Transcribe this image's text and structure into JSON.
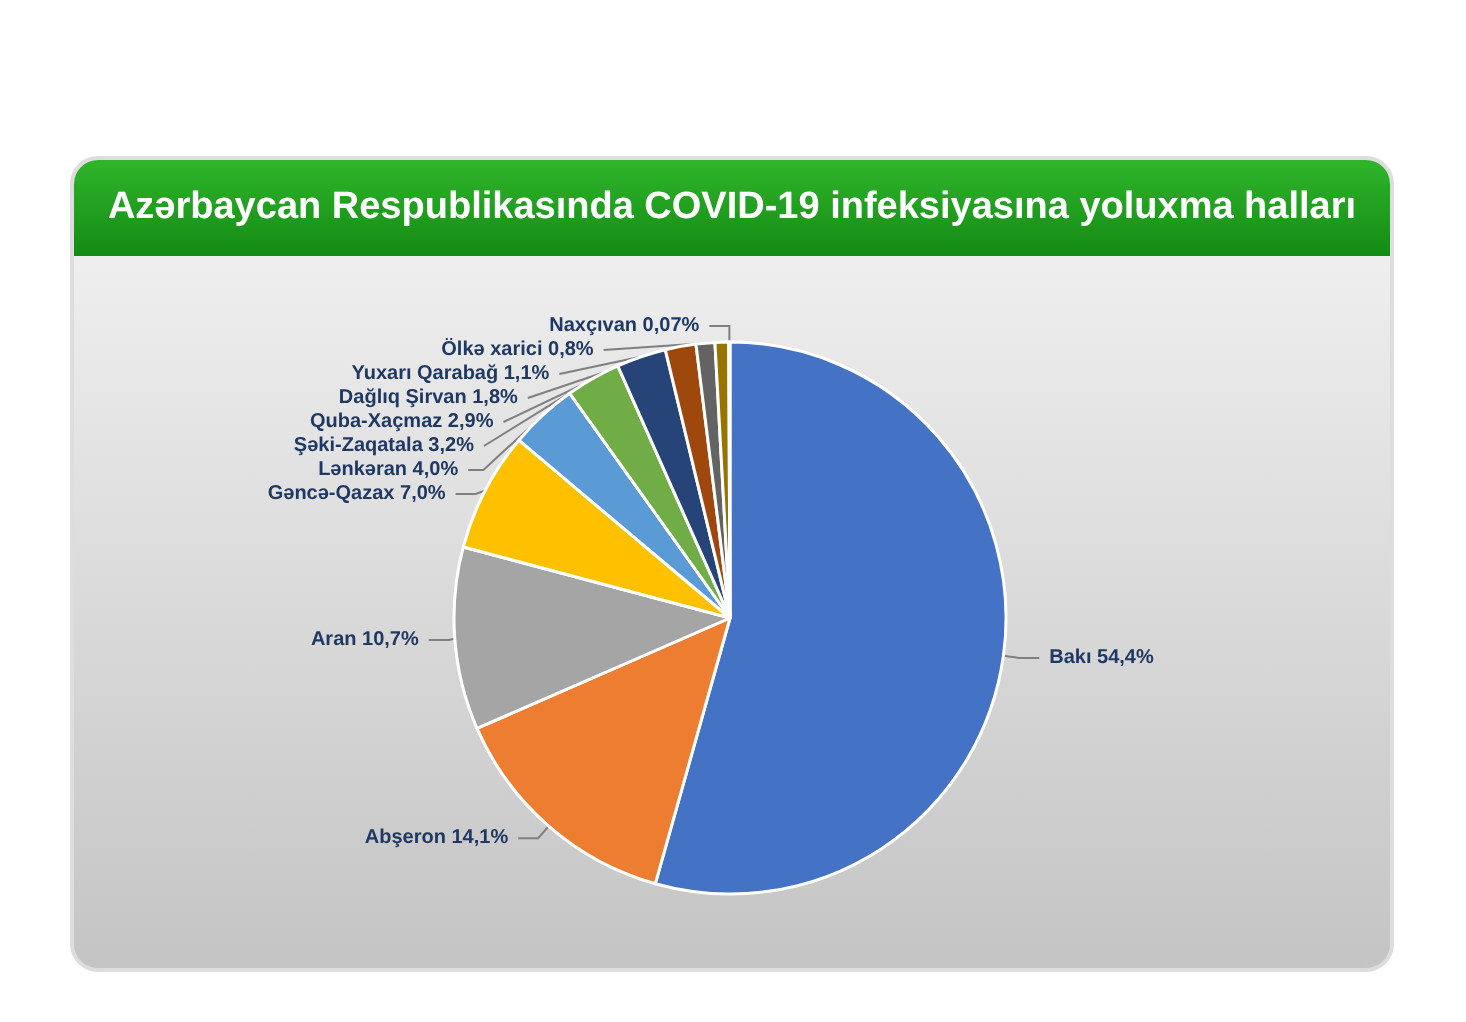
{
  "chart_data": {
    "type": "pie",
    "title": "Azərbaycan Respublikasında COVID-19 infeksiyasına yoluxma halları",
    "categories": [
      "Bakı",
      "Abşeron",
      "Aran",
      "Gəncə-Qazax",
      "Lənkəran",
      "Şəki-Zaqatala",
      "Quba-Xaçmaz",
      "Dağlıq Şirvan",
      "Yuxarı Qarabağ",
      "Ölkə xarici",
      "Naxçıvan"
    ],
    "values": [
      54.4,
      14.1,
      10.7,
      7.0,
      4.0,
      3.2,
      2.9,
      1.8,
      1.1,
      0.8,
      0.07
    ],
    "value_labels": [
      "54,4%",
      "14,1%",
      "10,7%",
      "7,0%",
      "4,0%",
      "3,2%",
      "2,9%",
      "1,8%",
      "1,1%",
      "0,8%",
      "0,07%"
    ],
    "colors": [
      "#4472c4",
      "#ed7d31",
      "#a5a5a5",
      "#ffc000",
      "#5b9bd5",
      "#70ad47",
      "#264478",
      "#9e480e",
      "#636363",
      "#997300",
      "#255e91"
    ],
    "legend": false
  }
}
